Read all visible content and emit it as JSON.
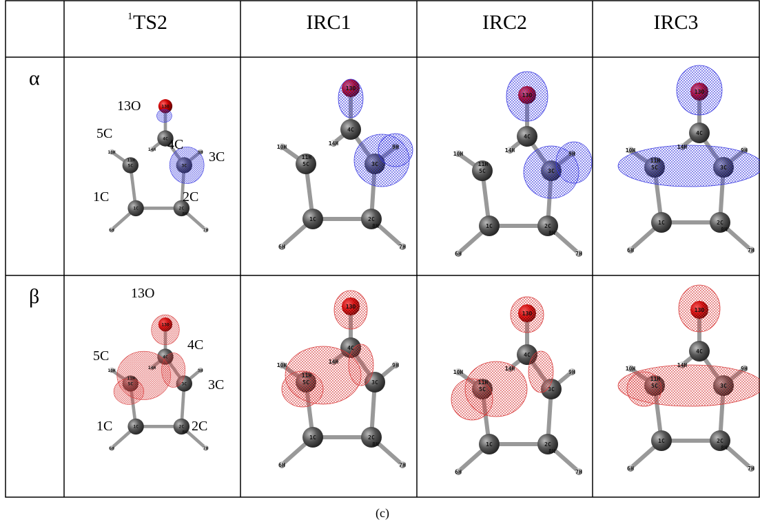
{
  "table": {
    "columns": [
      {
        "superscript": "1",
        "label": "TS2"
      },
      {
        "label": "IRC1"
      },
      {
        "label": "IRC2"
      },
      {
        "label": "IRC3"
      }
    ],
    "rows": [
      {
        "label": "α",
        "panels": [
          {
            "atom_labels": [
              "13O",
              "4C",
              "14H",
              "5C",
              "11H",
              "10H",
              "3C",
              "9H",
              "1C",
              "2C",
              "8H",
              "6H",
              "7H"
            ],
            "annotations": [
              "13O",
              "5C",
              "4C",
              "3C",
              "1C",
              "2C"
            ]
          },
          {
            "atom_labels": [
              "13O",
              "4C",
              "14H",
              "5C",
              "11H",
              "10H",
              "3C",
              "9H",
              "1C",
              "2C",
              "8H",
              "6H",
              "7H"
            ]
          },
          {
            "atom_labels": [
              "13O",
              "4C",
              "14H",
              "5C",
              "11H",
              "10H",
              "3C",
              "9H",
              "1C",
              "2C",
              "8H",
              "6H",
              "7H"
            ]
          },
          {
            "atom_labels": [
              "13O",
              "4C",
              "14H",
              "5C",
              "11H",
              "10H",
              "3C",
              "9H",
              "1C",
              "2C",
              "8H",
              "6H",
              "7H"
            ]
          }
        ]
      },
      {
        "label": "β",
        "panels": [
          {
            "atom_labels": [
              "13O",
              "4C",
              "14H",
              "5C",
              "11H",
              "10H",
              "3C",
              "9H",
              "1C",
              "2C",
              "8H",
              "6H",
              "7H"
            ],
            "annotations": [
              "13O",
              "5C",
              "4C",
              "3C",
              "1C",
              "2C"
            ]
          },
          {
            "atom_labels": [
              "13O",
              "4C",
              "14H",
              "5C",
              "11H",
              "10H",
              "3C",
              "9H",
              "1C",
              "2C",
              "8H",
              "6H",
              "7H"
            ]
          },
          {
            "atom_labels": [
              "13O",
              "4C",
              "14H",
              "5C",
              "11H",
              "10H",
              "3C",
              "9H",
              "1C",
              "2C",
              "8H",
              "6H",
              "7H"
            ]
          },
          {
            "atom_labels": [
              "13O",
              "4C",
              "14H",
              "5C",
              "11H",
              "10H",
              "3C",
              "9H",
              "1C",
              "2C",
              "8H",
              "6H",
              "7H"
            ]
          }
        ]
      }
    ]
  },
  "caption": "(c)"
}
